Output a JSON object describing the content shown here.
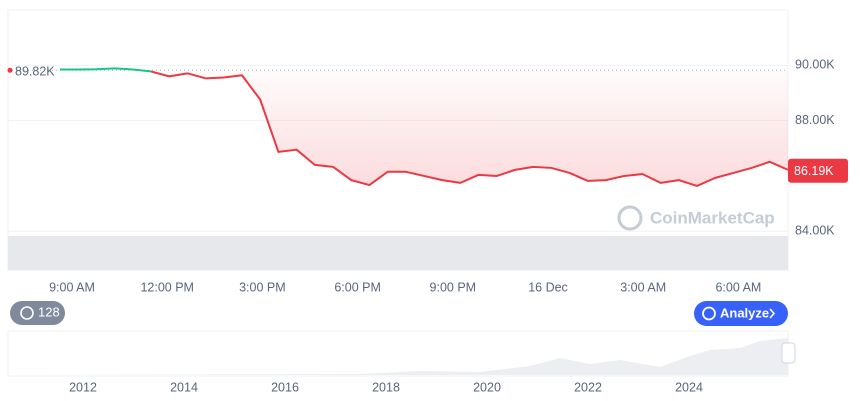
{
  "chart_data": {
    "type": "line",
    "series": [
      {
        "color": "#16c784",
        "values": [
          89850,
          89850,
          89860,
          89890,
          89850,
          89780,
          null,
          null,
          null,
          null,
          null,
          null,
          null,
          null,
          null,
          null,
          null,
          null,
          null,
          null,
          null,
          null,
          null,
          null,
          null,
          null,
          null,
          null,
          null,
          null,
          null,
          null,
          null,
          null,
          null,
          null,
          null,
          null,
          null,
          null,
          null
        ]
      },
      {
        "color": "#ea3943",
        "values": [
          null,
          null,
          null,
          null,
          null,
          89780,
          89600,
          89710,
          89530,
          89560,
          89640,
          88760,
          86870,
          86950,
          86400,
          86330,
          85850,
          85670,
          86150,
          86150,
          86000,
          85850,
          85750,
          86040,
          86000,
          86220,
          86330,
          86290,
          86110,
          85820,
          85850,
          86000,
          86070,
          85750,
          85850,
          85640,
          85930,
          86110,
          86290,
          86510,
          86220
        ]
      }
    ],
    "x_labels": [
      "9:00 AM",
      "12:00 PM",
      "3:00 PM",
      "6:00 PM",
      "9:00 PM",
      "16 Dec",
      "3:00 AM",
      "6:00 AM"
    ],
    "ylim": [
      82600,
      92000
    ],
    "yticks": [
      {
        "value": 84000,
        "label": "84.00K"
      },
      {
        "value": 88000,
        "label": "88.00K"
      },
      {
        "value": 90000,
        "label": "90.00K"
      }
    ],
    "grid": true,
    "reference": {
      "value": 89820,
      "label": "89.82K"
    },
    "current": {
      "value": 86190,
      "label": "86.19K"
    },
    "watermark": "CoinMarketCap",
    "history_badge": "128",
    "analyze_button": "Analyze",
    "navigator_years": [
      "2012",
      "2014",
      "2016",
      "2018",
      "2020",
      "2022",
      "2024"
    ]
  }
}
